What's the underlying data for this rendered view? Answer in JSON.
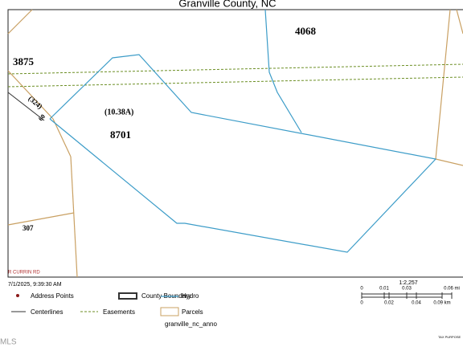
{
  "header": {
    "title": "Granville County, NC"
  },
  "map": {
    "labels": [
      "4068",
      "3875",
      "(324)",
      "60",
      "(10.38A)",
      "8701",
      "307",
      "R CURRIN RD"
    ]
  },
  "footer": {
    "timestamp": "7/1/2025, 9:39:30 AM",
    "legend": [
      "Address Points",
      "County Boundary",
      "Hydro",
      "Centerlines",
      "Easements",
      "Parcels",
      "granville_nc_anno"
    ],
    "scale": {
      "ratio": "1:2,257",
      "miles": [
        "0",
        "0.01",
        "0.03",
        "0.06 mi"
      ],
      "km": [
        "0",
        "0.02",
        "0.04",
        "0.09 km"
      ]
    },
    "note": "TAX PURPOSE",
    "watermark": "MLS"
  }
}
